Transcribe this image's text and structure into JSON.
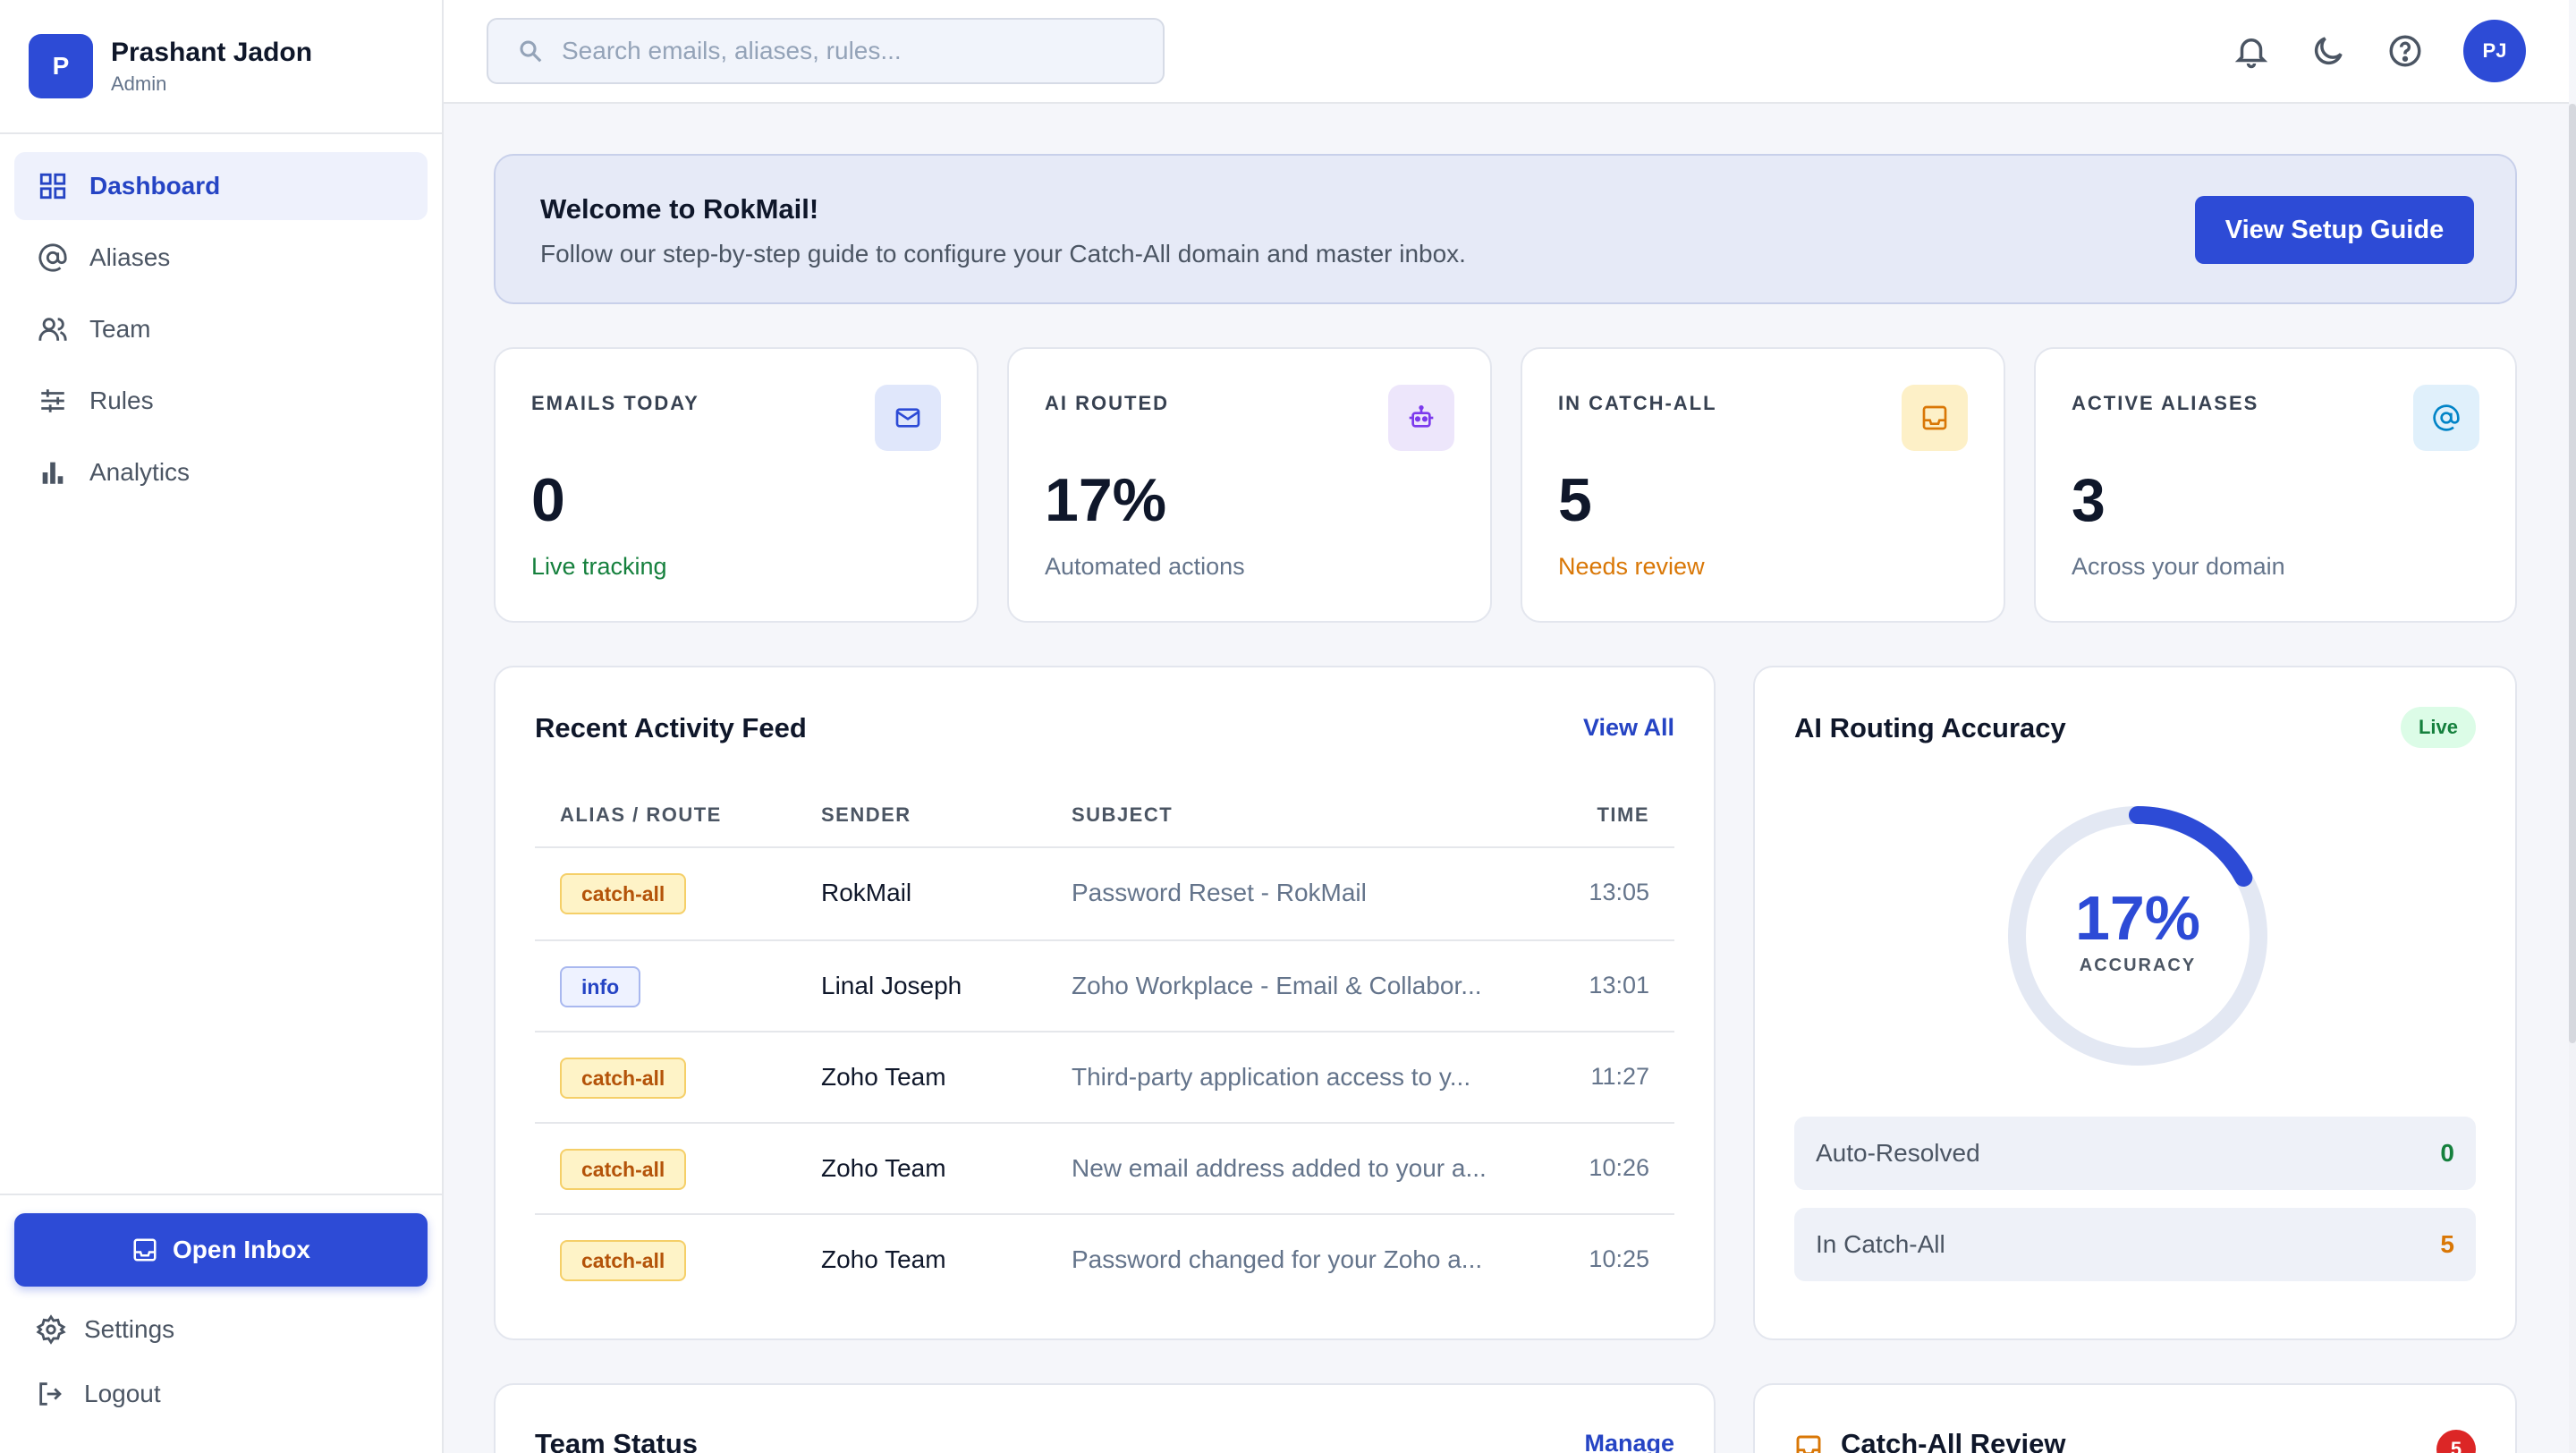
{
  "profile": {
    "initial": "P",
    "name": "Prashant Jadon",
    "role": "Admin"
  },
  "nav": {
    "items": [
      {
        "label": "Dashboard",
        "icon": "grid-icon",
        "active": true
      },
      {
        "label": "Aliases",
        "icon": "at-icon"
      },
      {
        "label": "Team",
        "icon": "users-icon"
      },
      {
        "label": "Rules",
        "icon": "sliders-icon"
      },
      {
        "label": "Analytics",
        "icon": "bar-chart-icon"
      }
    ]
  },
  "sidebar_bottom": {
    "open_inbox": "Open Inbox",
    "settings": "Settings",
    "logout": "Logout"
  },
  "search": {
    "placeholder": "Search emails, aliases, rules..."
  },
  "topbar": {
    "avatar_initials": "PJ",
    "icons": [
      "bell-icon",
      "moon-icon",
      "help-icon"
    ]
  },
  "welcome": {
    "title": "Welcome to RokMail!",
    "subtitle": "Follow our step-by-step guide to configure your Catch-All domain and master inbox.",
    "button": "View Setup Guide"
  },
  "stats": [
    {
      "label": "EMAILS TODAY",
      "value": "0",
      "sub": "Live tracking",
      "sub_color": "#15803d",
      "icon": "mail-icon",
      "icon_bg": "#e0e7fb",
      "icon_color": "#2d4bd6"
    },
    {
      "label": "AI ROUTED",
      "value": "17%",
      "sub": "Automated actions",
      "sub_color": "#64748b",
      "icon": "robot-icon",
      "icon_bg": "#ede6fb",
      "icon_color": "#7c3aed"
    },
    {
      "label": "IN CATCH-ALL",
      "value": "5",
      "sub": "Needs review",
      "sub_color": "#d97706",
      "icon": "inbox-icon",
      "icon_bg": "#fdf0c7",
      "icon_color": "#d97706"
    },
    {
      "label": "ACTIVE ALIASES",
      "value": "3",
      "sub": "Across your domain",
      "sub_color": "#64748b",
      "icon": "at-icon",
      "icon_bg": "#e0f0fb",
      "icon_color": "#0284c7"
    }
  ],
  "activity": {
    "title": "Recent Activity Feed",
    "view_all": "View All",
    "columns": [
      "ALIAS / ROUTE",
      "SENDER",
      "SUBJECT",
      "TIME"
    ],
    "rows": [
      {
        "route": "catch-all",
        "sender": "RokMail",
        "subject": "Password Reset - RokMail",
        "time": "13:05"
      },
      {
        "route": "info",
        "sender": "Linal Joseph",
        "subject": "Zoho Workplace - Email & Collabor...",
        "time": "13:01"
      },
      {
        "route": "catch-all",
        "sender": "Zoho Team",
        "subject": "Third-party application access to y...",
        "time": "11:27"
      },
      {
        "route": "catch-all",
        "sender": "Zoho Team",
        "subject": "New email address added to your a...",
        "time": "10:26"
      },
      {
        "route": "catch-all",
        "sender": "Zoho Team",
        "subject": "Password changed for your Zoho a...",
        "time": "10:25"
      }
    ]
  },
  "accuracy": {
    "title": "AI Routing Accuracy",
    "status": "Live",
    "value": "17%",
    "percent": 17,
    "caption": "ACCURACY",
    "rows": [
      {
        "label": "Auto-Resolved",
        "value": "0",
        "color": "#15803d"
      },
      {
        "label": "In Catch-All",
        "value": "5",
        "color": "#d97706"
      }
    ]
  },
  "team_status": {
    "title": "Team Status",
    "link": "Manage"
  },
  "catchall_review": {
    "title": "Catch-All Review",
    "count": "5"
  },
  "colors": {
    "accent": "#2d4bd6",
    "accent_text": "#2544c4"
  }
}
